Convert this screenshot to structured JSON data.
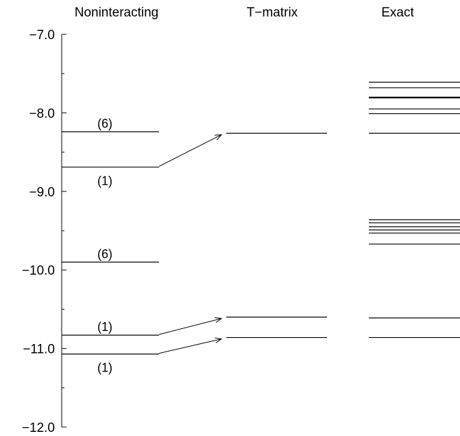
{
  "chart_data": {
    "type": "energy-level-diagram",
    "columns": [
      "Noninteracting",
      "T−matrix",
      "Exact"
    ],
    "ylim": [
      -12.0,
      -7.0
    ],
    "y_ticks": [
      {
        "value": -7.0,
        "label": "−7.0"
      },
      {
        "value": -8.0,
        "label": "−8.0"
      },
      {
        "value": -9.0,
        "label": "−9.0"
      },
      {
        "value": -10.0,
        "label": "−10.0"
      },
      {
        "value": -11.0,
        "label": "−11.0"
      },
      {
        "value": -12.0,
        "label": "−12.0"
      }
    ],
    "y_minor_ticks": [
      -7.5,
      -8.5,
      -9.5,
      -10.5,
      -11.5
    ],
    "noninteracting": [
      {
        "energy": -8.24,
        "label": "(6)",
        "label_side": "above"
      },
      {
        "energy": -8.69,
        "label": "(1)",
        "label_side": "below"
      },
      {
        "energy": -9.9,
        "label": "(6)",
        "label_side": "above"
      },
      {
        "energy": -10.83,
        "label": "(1)",
        "label_side": "above"
      },
      {
        "energy": -11.07,
        "label": "(1)",
        "label_side": "below"
      }
    ],
    "tmatrix": [
      -8.26,
      -10.6,
      -10.86
    ],
    "exact": [
      -7.61,
      -7.68,
      -7.8,
      -7.81,
      -7.95,
      -8.01,
      -8.26,
      -9.36,
      -9.4,
      -9.45,
      -9.49,
      -9.53,
      -9.67,
      -10.61,
      -10.86
    ],
    "arrows": [
      {
        "from_energy": -8.69,
        "to_energy": -8.26
      },
      {
        "from_energy": -10.83,
        "to_energy": -10.6
      },
      {
        "from_energy": -11.07,
        "to_energy": -10.86
      }
    ],
    "line_color": "#000000"
  }
}
